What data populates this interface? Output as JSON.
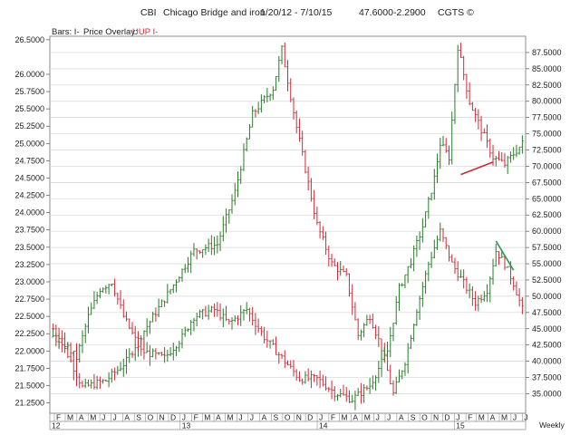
{
  "header": {
    "symbol": "CBI",
    "name": "Chicago Bridge and iron",
    "date_range": "1/20/12 - 7/10/15",
    "last_price": "47.6000",
    "change": "-2.2900",
    "source": "CGTS ©"
  },
  "overlay": {
    "bars_label": "Bars: I-",
    "price_overlay_label": "Price Overlay:",
    "overlay_symbol": "UUP I-"
  },
  "colors": {
    "up_bar": "#2a7a2a",
    "down_bar": "#cc2b3b",
    "grid": "#d6d6d6",
    "frame": "#8c8c8c",
    "trendline_red": "#cc2b3b",
    "trendline_green": "#2a9a4a"
  },
  "chart_data": {
    "type": "ohlc",
    "frequency_label": "Weekly",
    "left_axis": {
      "series": "UUP",
      "ticks": [
        "26.5000",
        "26.0000",
        "25.7500",
        "25.5000",
        "25.2500",
        "25.0000",
        "24.7500",
        "24.5000",
        "24.2500",
        "24.0000",
        "23.7500",
        "23.5000",
        "23.2500",
        "23.0000",
        "22.7500",
        "22.5000",
        "22.2500",
        "22.0000",
        "21.7500",
        "21.5000",
        "21.2500"
      ],
      "ylim": [
        21.1,
        26.55
      ]
    },
    "right_axis": {
      "series": "CBI",
      "ticks": [
        "87.5000",
        "85.0000",
        "82.5000",
        "80.0000",
        "77.5000",
        "75.0000",
        "72.5000",
        "70.0000",
        "67.5000",
        "65.0000",
        "62.5000",
        "60.0000",
        "57.5000",
        "55.0000",
        "52.5000",
        "50.0000",
        "47.5000",
        "45.0000",
        "42.5000",
        "40.0000",
        "37.5000",
        "35.0000"
      ],
      "ylim": [
        32.0,
        90.0
      ]
    },
    "x_axis": {
      "months": [
        "F",
        "M",
        "A",
        "M",
        "J",
        "J",
        "A",
        "S",
        "O",
        "N",
        "D",
        "J",
        "F",
        "M",
        "A",
        "M",
        "J",
        "J",
        "A",
        "S",
        "O",
        "N",
        "D",
        "J",
        "F",
        "M",
        "A",
        "M",
        "J",
        "J",
        "A",
        "S",
        "O",
        "N",
        "D",
        "J",
        "F",
        "M",
        "A",
        "M",
        "J",
        "J"
      ],
      "years": [
        "12",
        "13",
        "14",
        "15"
      ],
      "range": [
        "2012-01-20",
        "2015-07-10"
      ]
    },
    "series": [
      {
        "name": "CBI",
        "axis": "right",
        "anchors": [
          [
            0,
            45
          ],
          [
            5,
            41
          ],
          [
            10,
            36
          ],
          [
            18,
            37
          ],
          [
            25,
            40
          ],
          [
            30,
            44
          ],
          [
            40,
            51
          ],
          [
            48,
            57
          ],
          [
            56,
            58
          ],
          [
            62,
            66
          ],
          [
            68,
            78
          ],
          [
            75,
            82
          ],
          [
            78,
            88
          ],
          [
            83,
            76
          ],
          [
            90,
            61
          ],
          [
            95,
            55
          ],
          [
            100,
            53
          ],
          [
            104,
            44
          ],
          [
            108,
            47
          ],
          [
            112,
            42
          ],
          [
            116,
            35
          ],
          [
            120,
            40
          ],
          [
            124,
            48
          ],
          [
            128,
            55
          ],
          [
            132,
            60
          ],
          [
            136,
            55
          ],
          [
            140,
            52
          ],
          [
            144,
            49
          ],
          [
            148,
            51
          ],
          [
            151,
            57
          ],
          [
            154,
            55
          ],
          [
            157,
            52
          ],
          [
            160,
            48
          ]
        ]
      },
      {
        "name": "UUP",
        "axis": "left",
        "anchors": [
          [
            0,
            22.2
          ],
          [
            4,
            22.1
          ],
          [
            8,
            21.9
          ],
          [
            12,
            22.5
          ],
          [
            16,
            22.9
          ],
          [
            20,
            23.0
          ],
          [
            24,
            22.5
          ],
          [
            30,
            22.0
          ],
          [
            38,
            21.9
          ],
          [
            44,
            22.2
          ],
          [
            48,
            22.5
          ],
          [
            55,
            22.6
          ],
          [
            60,
            22.4
          ],
          [
            66,
            22.6
          ],
          [
            72,
            22.2
          ],
          [
            78,
            21.9
          ],
          [
            84,
            21.6
          ],
          [
            90,
            21.6
          ],
          [
            96,
            21.4
          ],
          [
            102,
            21.3
          ],
          [
            108,
            21.5
          ],
          [
            114,
            22.0
          ],
          [
            118,
            22.9
          ],
          [
            122,
            23.3
          ],
          [
            126,
            23.8
          ],
          [
            130,
            24.5
          ],
          [
            132,
            25.0
          ],
          [
            135,
            24.8
          ],
          [
            138,
            26.4
          ],
          [
            142,
            25.6
          ],
          [
            146,
            25.2
          ],
          [
            150,
            24.8
          ],
          [
            154,
            24.7
          ],
          [
            160,
            25.0
          ]
        ]
      }
    ],
    "trendlines": [
      {
        "series": "UUP",
        "start": [
          139,
          24.55
        ],
        "end": [
          150,
          24.73
        ]
      },
      {
        "series": "CBI",
        "start": [
          151,
          58.5
        ],
        "end": [
          157,
          54.0
        ]
      }
    ]
  }
}
